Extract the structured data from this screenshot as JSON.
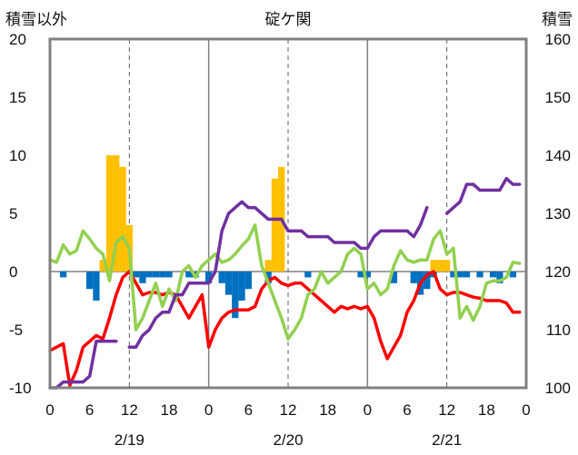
{
  "chart_data": {
    "type": "bar+line",
    "title": "碇ケ関",
    "ylabel_left": "積雪以外",
    "ylabel_right": "積雪",
    "ylim_left": [
      -10,
      20
    ],
    "ylim_right": [
      100,
      160
    ],
    "yticks_left": [
      "20",
      "15",
      "10",
      "5",
      "0",
      "-5",
      "-10"
    ],
    "yticks_right": [
      "160",
      "150",
      "140",
      "130",
      "120",
      "110",
      "100"
    ],
    "xlim": [
      0,
      72
    ],
    "xtick_labels": [
      "0",
      "6",
      "12",
      "18",
      "0",
      "6",
      "12",
      "18",
      "0",
      "6",
      "12",
      "18",
      "0"
    ],
    "date_labels": [
      "2/19",
      "2/20",
      "2/21"
    ],
    "day_boundaries": [
      24,
      48
    ],
    "noon_lines": [
      12,
      36,
      60
    ],
    "colors": {
      "snowfall_bar": "#FFC000",
      "snow_change_bar": "#0070C0",
      "temperature": "#FF0000",
      "wind": "#92D050",
      "snow_depth": "#7030A0"
    },
    "series": [
      {
        "kind": "bar",
        "color_key": "snowfall_bar",
        "x": [
          8,
          9,
          10,
          11,
          12,
          33,
          34,
          35,
          58,
          59,
          60
        ],
        "values": [
          1,
          10,
          10,
          9,
          4,
          1,
          8,
          9,
          1,
          1,
          1
        ]
      },
      {
        "kind": "bar",
        "color_key": "snow_change_bar",
        "x": [
          2,
          6,
          7,
          13,
          14,
          15,
          16,
          17,
          18,
          21,
          22,
          24,
          26,
          27,
          28,
          29,
          30,
          33,
          39,
          47,
          48,
          52,
          55,
          56,
          57,
          58,
          61,
          62,
          63,
          65,
          67,
          68,
          70
        ],
        "values": [
          -0.5,
          -1.5,
          -2.5,
          -0.5,
          -1.0,
          -0.5,
          -0.5,
          -0.5,
          -0.5,
          -0.5,
          -0.5,
          -1.0,
          -1.0,
          -2.0,
          -4.0,
          -2.5,
          -1.5,
          -1.0,
          -0.5,
          -0.5,
          -0.5,
          -1.0,
          -1.0,
          -2.0,
          -1.5,
          -0.5,
          -0.5,
          -0.5,
          -0.5,
          -0.5,
          -0.5,
          -1.0,
          -0.5
        ]
      },
      {
        "kind": "line",
        "axis": "left",
        "color_key": "temperature",
        "x": [
          0,
          1,
          2,
          3,
          4,
          5,
          6,
          7,
          8,
          9,
          10,
          11,
          12,
          13,
          14,
          15,
          16,
          17,
          18,
          19,
          20,
          21,
          22,
          23,
          24,
          25,
          26,
          27,
          28,
          29,
          30,
          31,
          32,
          33,
          34,
          35,
          36,
          37,
          38,
          39,
          40,
          41,
          42,
          43,
          44,
          45,
          46,
          47,
          48,
          49,
          50,
          51,
          52,
          53,
          54,
          55,
          56,
          57,
          58,
          59,
          60,
          61,
          62,
          63,
          64,
          65,
          66,
          67,
          68,
          69,
          70,
          71
        ],
        "values": [
          -6.8,
          -6.5,
          -6.2,
          -9.8,
          -8.5,
          -6.5,
          -6.0,
          -5.5,
          -5.8,
          -4.0,
          -2.0,
          -0.5,
          0.0,
          -1.0,
          -2.0,
          -1.8,
          -1.8,
          -2.0,
          -1.8,
          -2.0,
          -3.0,
          -4.0,
          -3.0,
          -2.0,
          -6.5,
          -5.0,
          -4.0,
          -3.5,
          -3.3,
          -3.3,
          -3.3,
          -3.0,
          -1.5,
          -0.8,
          -0.5,
          -1.0,
          -1.2,
          -1.0,
          -1.0,
          -1.5,
          -2.0,
          -2.5,
          -3.0,
          -3.5,
          -3.0,
          -3.2,
          -3.0,
          -3.2,
          -3.0,
          -4.0,
          -6.0,
          -7.5,
          -6.5,
          -5.5,
          -3.5,
          -2.5,
          -1.0,
          -0.3,
          0.0,
          -1.5,
          -2.0,
          -1.8,
          -1.8,
          -2.0,
          -2.2,
          -2.3,
          -2.5,
          -2.5,
          -2.5,
          -2.7,
          -3.5,
          -3.5
        ]
      },
      {
        "kind": "line",
        "axis": "left",
        "color_key": "wind",
        "x": [
          0,
          1,
          2,
          3,
          4,
          5,
          6,
          7,
          8,
          9,
          10,
          11,
          12,
          13,
          14,
          15,
          16,
          17,
          18,
          19,
          20,
          21,
          22,
          23,
          24,
          25,
          26,
          27,
          28,
          29,
          30,
          31,
          32,
          33,
          34,
          35,
          36,
          37,
          38,
          39,
          40,
          41,
          42,
          43,
          44,
          45,
          46,
          47,
          48,
          49,
          50,
          51,
          52,
          53,
          54,
          55,
          56,
          57,
          58,
          59,
          60,
          61,
          62,
          63,
          64,
          65,
          66,
          67,
          68,
          69,
          70,
          71
        ],
        "values": [
          1.0,
          0.8,
          2.3,
          1.5,
          1.8,
          3.5,
          2.8,
          2.0,
          1.5,
          -0.8,
          2.5,
          3.0,
          2.0,
          -5.0,
          -4.0,
          -2.5,
          -1.0,
          -3.0,
          -1.5,
          -2.5,
          0.0,
          0.5,
          -0.5,
          0.5,
          1.0,
          1.5,
          0.8,
          1.0,
          1.5,
          2.2,
          2.8,
          4.0,
          0.5,
          -1.0,
          -2.5,
          -4.0,
          -5.8,
          -5.0,
          -4.0,
          -2.0,
          -1.5,
          0.0,
          -1.0,
          -0.5,
          0.0,
          1.5,
          2.0,
          1.5,
          -1.5,
          -1.0,
          -2.0,
          -1.5,
          0.5,
          1.8,
          1.0,
          0.8,
          1.0,
          1.0,
          2.8,
          3.5,
          1.5,
          2.0,
          -4.0,
          -3.0,
          -4.2,
          -3.0,
          -1.0,
          -0.8,
          -0.8,
          -0.5,
          0.8,
          0.7
        ]
      },
      {
        "kind": "line",
        "axis": "right",
        "color_key": "snow_depth",
        "segments": [
          {
            "x": [
              0,
              1,
              2,
              3,
              4,
              5,
              6,
              7,
              8,
              9,
              10
            ],
            "values": [
              100,
              100,
              101,
              101,
              101,
              101,
              102,
              108,
              108,
              108,
              108
            ]
          },
          {
            "x": [
              12,
              13,
              14,
              15,
              16,
              17,
              18,
              19,
              20,
              21,
              22,
              23,
              24,
              25,
              26,
              27,
              28,
              29,
              30,
              31,
              32,
              33,
              34,
              35,
              36,
              37,
              38,
              39,
              40,
              41,
              42,
              43,
              44,
              45,
              46,
              47,
              48,
              49,
              50,
              51,
              52,
              53,
              54,
              55,
              56,
              57
            ],
            "values": [
              107,
              107,
              109,
              110,
              112,
              113,
              113,
              116,
              116,
              118,
              118,
              118,
              118,
              120,
              127,
              130,
              131,
              132,
              131,
              131,
              130,
              129,
              129,
              129,
              127,
              127,
              127,
              126,
              126,
              126,
              126,
              125,
              125,
              125,
              125,
              124,
              124,
              126,
              127,
              127,
              127,
              127,
              127,
              126,
              128,
              131
            ]
          },
          {
            "x": [
              60,
              61,
              62,
              63,
              64,
              65,
              66,
              67,
              68,
              69,
              70,
              71
            ],
            "values": [
              130,
              131,
              132,
              135,
              135,
              134,
              134,
              134,
              134,
              136,
              135,
              135
            ]
          }
        ]
      }
    ]
  }
}
